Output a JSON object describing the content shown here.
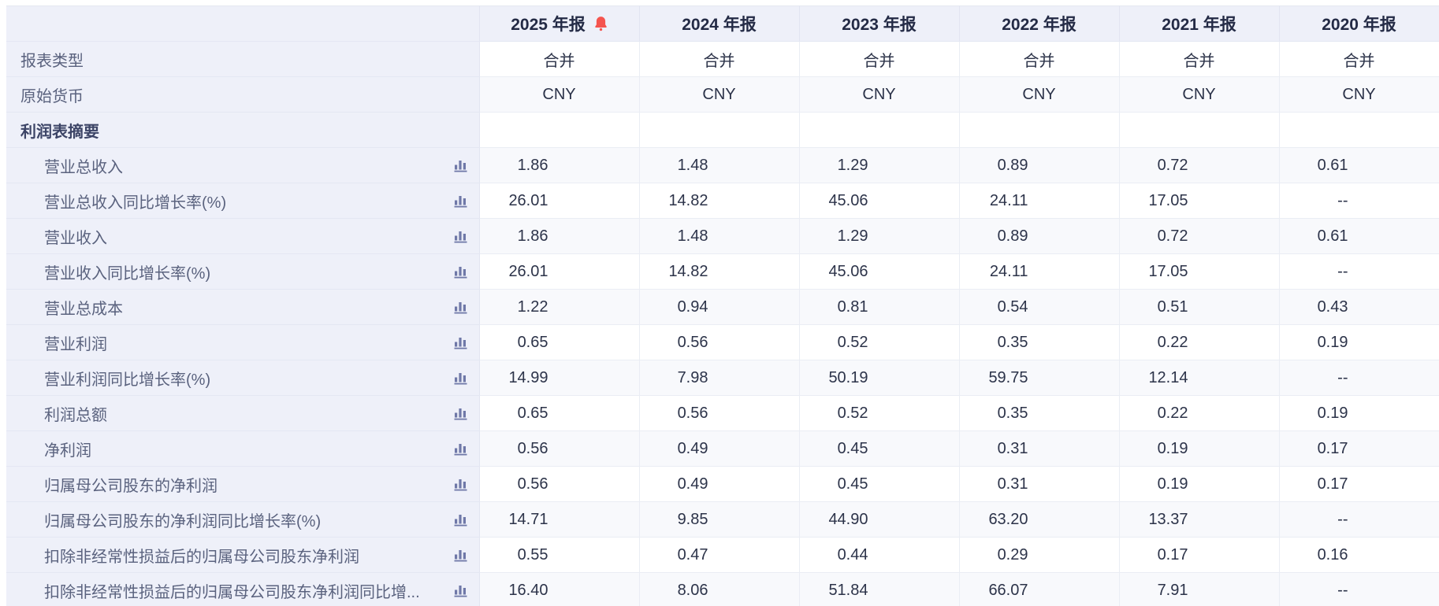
{
  "table": {
    "header": {
      "corner": "",
      "years": [
        "2025 年报",
        "2024 年报",
        "2023 年报",
        "2022 年报",
        "2021 年报",
        "2020 年报"
      ],
      "alert_on": "2025 年报"
    },
    "rows": [
      {
        "type": "meta",
        "label": "报表类型",
        "values": [
          "合并",
          "合并",
          "合并",
          "合并",
          "合并",
          "合并"
        ]
      },
      {
        "type": "meta",
        "label": "原始货币",
        "values": [
          "CNY",
          "CNY",
          "CNY",
          "CNY",
          "CNY",
          "CNY"
        ]
      },
      {
        "type": "section",
        "label": "利润表摘要",
        "values": [
          "",
          "",
          "",
          "",
          "",
          ""
        ]
      },
      {
        "type": "data",
        "label": "营业总收入",
        "values": [
          "1.86",
          "1.48",
          "1.29",
          "0.89",
          "0.72",
          "0.61"
        ]
      },
      {
        "type": "data",
        "label": "营业总收入同比增长率(%)",
        "values": [
          "26.01",
          "14.82",
          "45.06",
          "24.11",
          "17.05",
          "--"
        ]
      },
      {
        "type": "data",
        "label": "营业收入",
        "values": [
          "1.86",
          "1.48",
          "1.29",
          "0.89",
          "0.72",
          "0.61"
        ]
      },
      {
        "type": "data",
        "label": "营业收入同比增长率(%)",
        "values": [
          "26.01",
          "14.82",
          "45.06",
          "24.11",
          "17.05",
          "--"
        ]
      },
      {
        "type": "data",
        "label": "营业总成本",
        "values": [
          "1.22",
          "0.94",
          "0.81",
          "0.54",
          "0.51",
          "0.43"
        ]
      },
      {
        "type": "data",
        "label": "营业利润",
        "values": [
          "0.65",
          "0.56",
          "0.52",
          "0.35",
          "0.22",
          "0.19"
        ]
      },
      {
        "type": "data",
        "label": "营业利润同比增长率(%)",
        "values": [
          "14.99",
          "7.98",
          "50.19",
          "59.75",
          "12.14",
          "--"
        ]
      },
      {
        "type": "data",
        "label": "利润总额",
        "values": [
          "0.65",
          "0.56",
          "0.52",
          "0.35",
          "0.22",
          "0.19"
        ]
      },
      {
        "type": "data",
        "label": "净利润",
        "values": [
          "0.56",
          "0.49",
          "0.45",
          "0.31",
          "0.19",
          "0.17"
        ]
      },
      {
        "type": "data",
        "label": "归属母公司股东的净利润",
        "values": [
          "0.56",
          "0.49",
          "0.45",
          "0.31",
          "0.19",
          "0.17"
        ]
      },
      {
        "type": "data",
        "label": "归属母公司股东的净利润同比增长率(%)",
        "values": [
          "14.71",
          "9.85",
          "44.90",
          "63.20",
          "13.37",
          "--"
        ]
      },
      {
        "type": "data",
        "label": "扣除非经常性损益后的归属母公司股东净利润",
        "values": [
          "0.55",
          "0.47",
          "0.44",
          "0.29",
          "0.17",
          "0.16"
        ]
      },
      {
        "type": "data",
        "label": "扣除非经常性损益后的归属母公司股东净利润同比增...",
        "values": [
          "16.40",
          "8.06",
          "51.84",
          "66.07",
          "7.91",
          "--"
        ]
      }
    ]
  },
  "icons": {
    "alert": "bell-icon",
    "metric_chart": "bar-chart-icon"
  },
  "colors": {
    "label_column_bg": "#eef0f9",
    "alt_row_bg": "#f8f9fc",
    "bell_red": "#f5544e",
    "chart_icon_purple": "#6f78a8",
    "value_text": "#2c3349",
    "label_text": "#5a627e"
  }
}
